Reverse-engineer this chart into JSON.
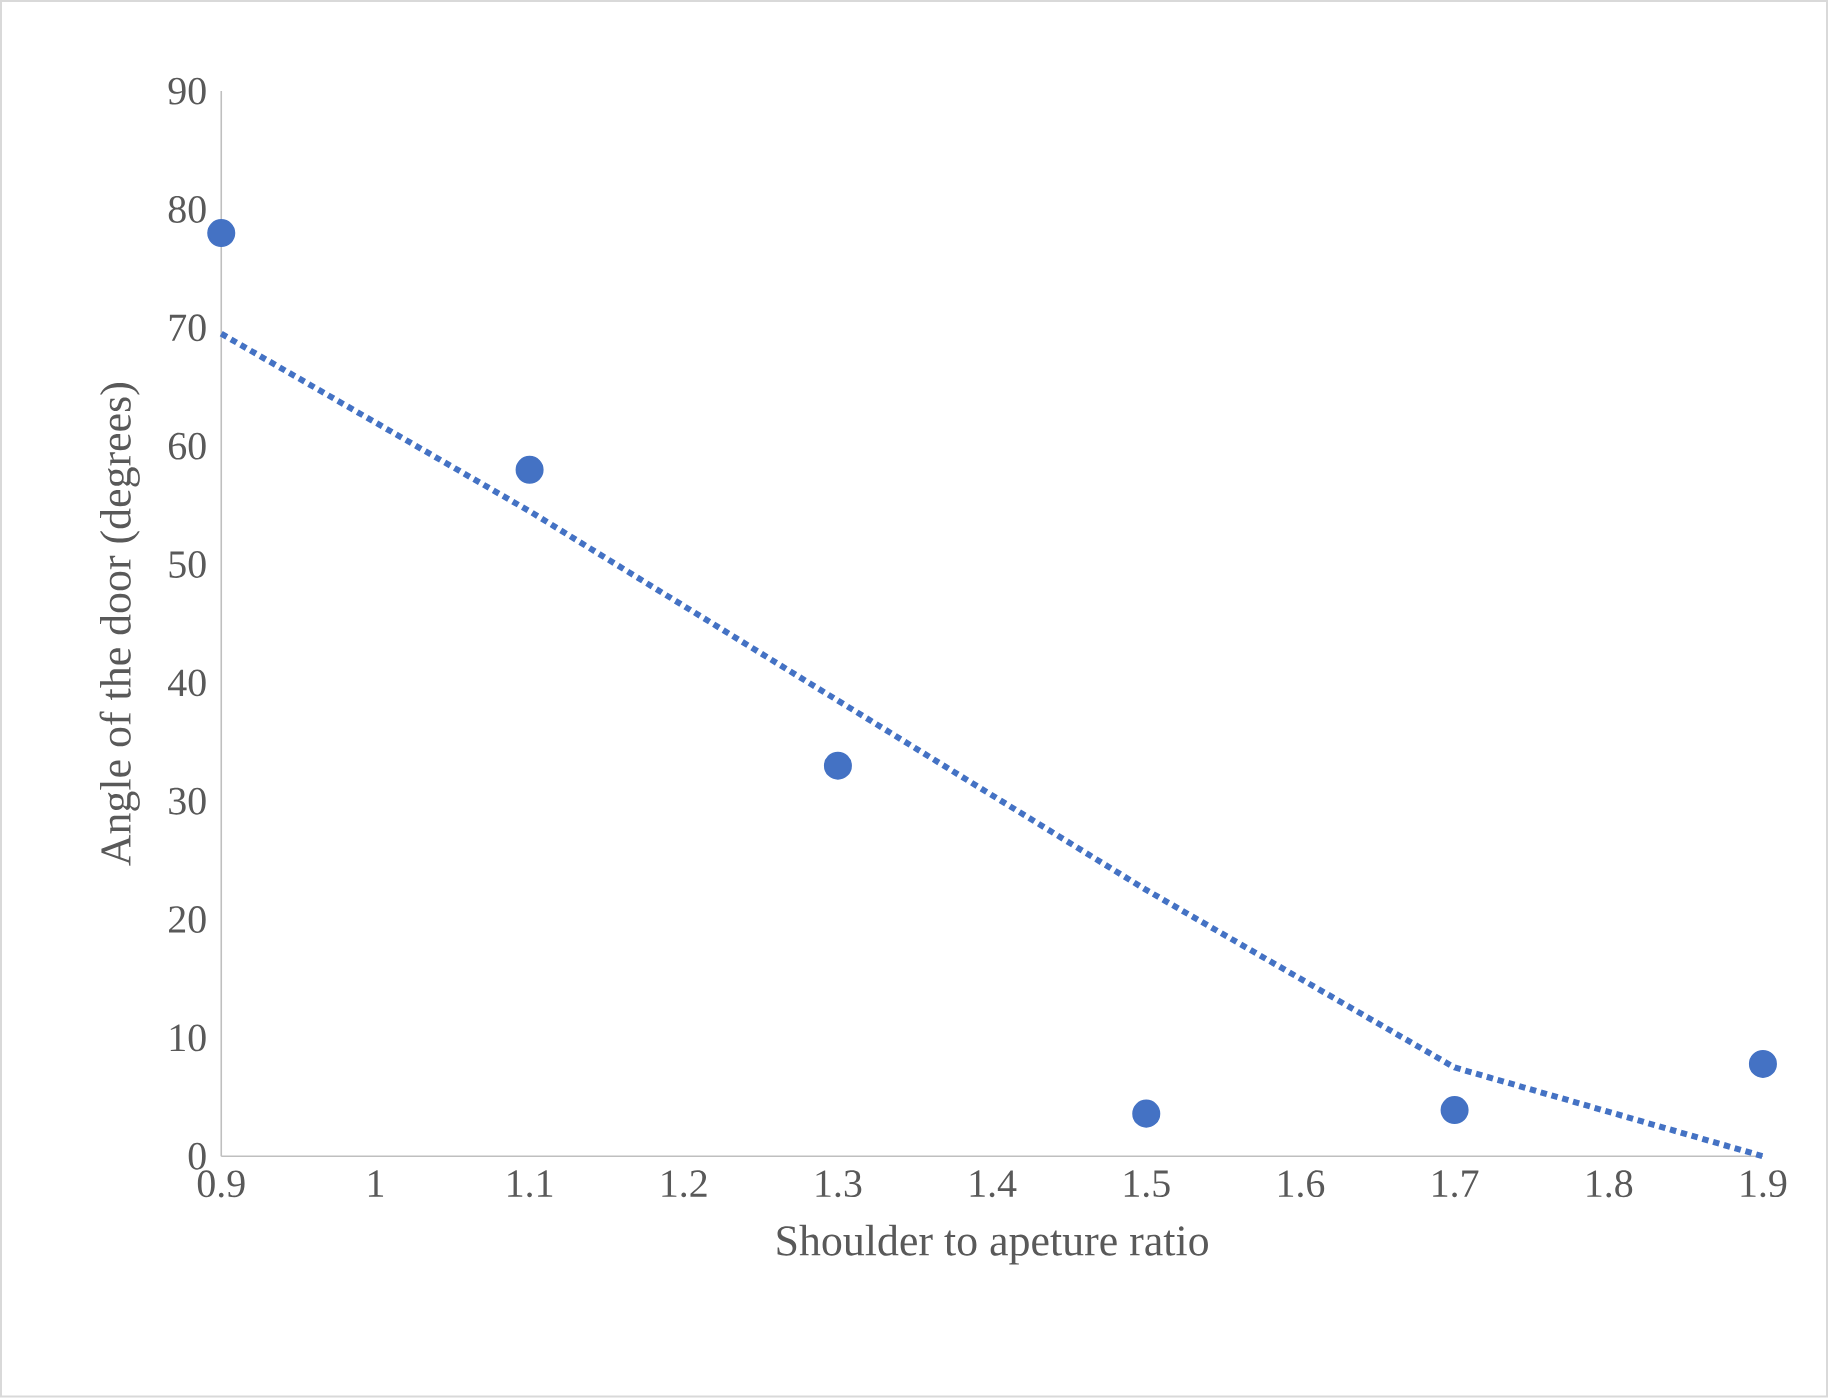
{
  "chart_data": {
    "type": "scatter",
    "xlabel": "Shoulder to apeture ratio",
    "ylabel": "Angle of the door (degrees)",
    "x": [
      0.9,
      1.1,
      1.3,
      1.5,
      1.7,
      1.9
    ],
    "series": [
      {
        "color": "#4472c4",
        "marker": "circle",
        "values": [
          78,
          58,
          33,
          3.6,
          3.9,
          7.8
        ]
      },
      {
        "type": "line",
        "color": "#4472c4",
        "line_style": "dotted",
        "marker": "none",
        "values": [
          69.5,
          54.5,
          38.5,
          22.5,
          7.5,
          0
        ]
      }
    ],
    "xlim": [
      0.9,
      1.9
    ],
    "xticks": [
      0.9,
      1,
      1.1,
      1.2,
      1.3,
      1.4,
      1.5,
      1.6,
      1.7,
      1.8,
      1.9
    ],
    "ylim": [
      0,
      90
    ],
    "yticks": [
      0,
      10,
      20,
      30,
      40,
      50,
      60,
      70,
      80,
      90
    ],
    "grid": false
  }
}
